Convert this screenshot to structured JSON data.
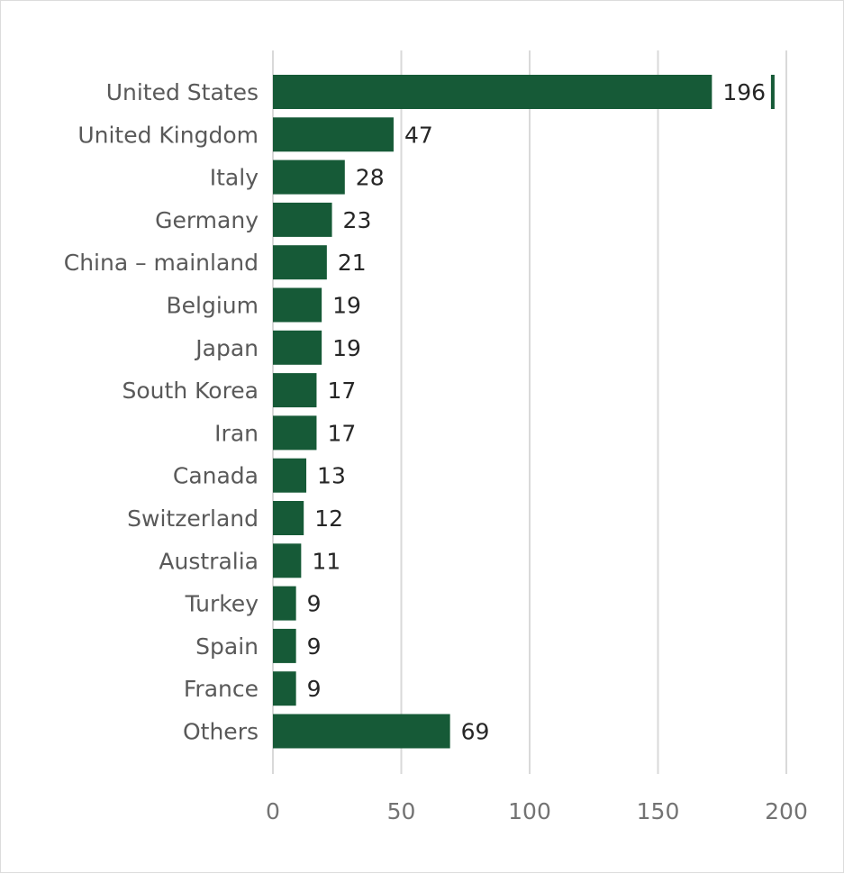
{
  "chart_data": {
    "type": "bar",
    "orientation": "horizontal",
    "title": "",
    "xlabel": "",
    "ylabel": "",
    "categories": [
      "United States",
      "United Kingdom",
      "Italy",
      "Germany",
      "China – mainland",
      "Belgium",
      "Japan",
      "South Korea",
      "Iran",
      "Canada",
      "Switzerland",
      "Australia",
      "Turkey",
      "Spain",
      "France",
      "Others"
    ],
    "values": [
      196,
      47,
      28,
      23,
      21,
      19,
      19,
      17,
      17,
      13,
      12,
      11,
      9,
      9,
      9,
      69
    ],
    "xlim": [
      0,
      200
    ],
    "ticks": [
      "0",
      "50",
      "100",
      "150",
      "200"
    ],
    "axis_break": {
      "category": "United States",
      "from": 171,
      "to": 194
    },
    "grid": true,
    "legend": "none",
    "bar_color": "#165a37",
    "grid_color": "#d9d9d9"
  }
}
